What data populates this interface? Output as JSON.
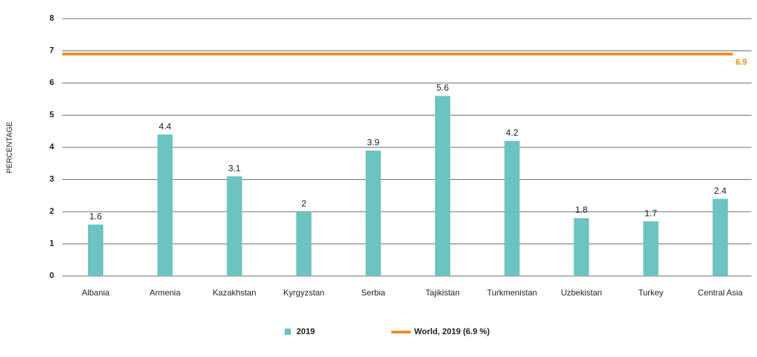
{
  "chart_data": {
    "type": "bar",
    "y_label": "PERCENTAGE",
    "categories": [
      "Albania",
      "Armenia",
      "Kazakhstan",
      "Kyrgyzstan",
      "Serbia",
      "Tajikistan",
      "Turkmenistan",
      "Uzbekistan",
      "Turkey",
      "Central Asia"
    ],
    "series": [
      {
        "name": "2019",
        "color": "#6cc3c1",
        "values": [
          1.6,
          4.4,
          3.1,
          2,
          3.9,
          5.6,
          4.2,
          1.8,
          1.7,
          2.4
        ]
      }
    ],
    "reference_line": {
      "name": "World, 2019 (6.9 %)",
      "value": 6.9,
      "color": "#f28c1b"
    },
    "ylim": [
      0,
      8
    ],
    "yticks": [
      0,
      1,
      2,
      3,
      4,
      5,
      6,
      7,
      8
    ],
    "grid": true
  }
}
